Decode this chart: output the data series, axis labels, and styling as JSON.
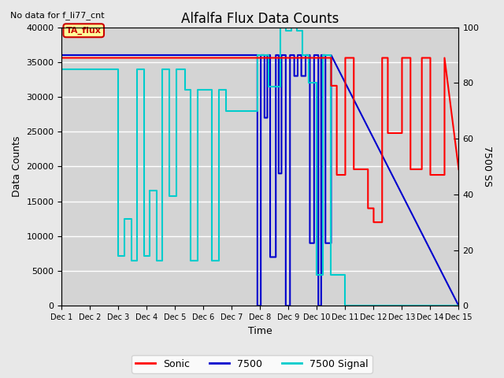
{
  "title": "Alfalfa Flux Data Counts",
  "top_left_text": "No data for f_li77_cnt",
  "xlabel": "Time",
  "ylabel": "Data Counts",
  "ylabel_right": "7500 SS",
  "ylim_left": [
    0,
    40000
  ],
  "ylim_right": [
    0,
    100
  ],
  "background_color": "#e8e8e8",
  "plot_bg_color": "#d4d4d4",
  "legend_entries": [
    "Sonic",
    "7500",
    "7500 Signal"
  ],
  "legend_colors": [
    "#ff0000",
    "#0000cd",
    "#00cccc"
  ],
  "annotation_box": {
    "text": "TA_flux",
    "color": "#cc0000",
    "bg": "#ffff99"
  },
  "xtick_labels": [
    "Dec 1",
    "Dec 2",
    "Dec 3",
    "Dec 4",
    "Dec 5",
    "Dec 6",
    "Dec 7",
    "Dec 8",
    "Dec 9",
    "Dec 10",
    "Dec 11",
    "Dec 12",
    "Dec 13",
    "Dec 14",
    "Dec 15"
  ],
  "xtick_positions": [
    1,
    2,
    3,
    4,
    5,
    6,
    7,
    8,
    9,
    10,
    11,
    12,
    13,
    14,
    15
  ],
  "ytick_left": [
    0,
    5000,
    10000,
    15000,
    20000,
    25000,
    30000,
    35000,
    40000
  ],
  "ytick_right": [
    0,
    20,
    40,
    60,
    80,
    100
  ],
  "sonic_x": [
    1.0,
    10.5,
    10.5,
    10.7,
    10.7,
    11.0,
    11.0,
    11.3,
    11.3,
    11.8,
    11.8,
    12.0,
    12.0,
    12.3,
    12.3,
    12.5,
    12.5,
    13.0,
    13.0,
    13.3,
    13.3,
    13.7,
    13.7,
    14.0,
    14.0,
    14.5,
    14.5,
    15.0
  ],
  "sonic_y": [
    89,
    89,
    79,
    79,
    47,
    47,
    89,
    89,
    49,
    49,
    35,
    35,
    30,
    30,
    89,
    89,
    62,
    62,
    89,
    89,
    49,
    49,
    89,
    89,
    47,
    47,
    89,
    49
  ],
  "s7500_x": [
    1.0,
    7.9,
    7.9,
    8.02,
    8.02,
    8.15,
    8.15,
    8.25,
    8.25,
    8.35,
    8.35,
    8.55,
    8.55,
    8.65,
    8.65,
    8.75,
    8.75,
    8.9,
    8.9,
    9.05,
    9.05,
    9.2,
    9.2,
    9.32,
    9.32,
    9.45,
    9.45,
    9.6,
    9.6,
    9.75,
    9.75,
    9.9,
    9.9,
    10.05,
    10.05,
    10.15,
    10.15,
    10.3,
    10.3,
    10.5,
    10.5,
    15.0
  ],
  "s7500_y": [
    36000,
    36000,
    0,
    0,
    36000,
    36000,
    27000,
    27000,
    36000,
    36000,
    7000,
    7000,
    36000,
    36000,
    19000,
    19000,
    36000,
    36000,
    0,
    0,
    36000,
    36000,
    33000,
    33000,
    36000,
    36000,
    33000,
    33000,
    36000,
    36000,
    9000,
    9000,
    36000,
    36000,
    0,
    0,
    36000,
    36000,
    9000,
    9000,
    36000,
    0
  ],
  "signal_x": [
    1.0,
    3.0,
    3.0,
    3.2,
    3.2,
    3.45,
    3.45,
    3.65,
    3.65,
    3.9,
    3.9,
    4.1,
    4.1,
    4.35,
    4.35,
    4.55,
    4.55,
    4.8,
    4.8,
    5.05,
    5.05,
    5.35,
    5.35,
    5.55,
    5.55,
    5.8,
    5.8,
    6.05,
    6.05,
    6.3,
    6.3,
    6.55,
    6.55,
    6.8,
    6.8,
    7.9,
    7.9,
    8.3,
    8.3,
    8.7,
    8.7,
    8.9,
    8.9,
    9.1,
    9.1,
    9.3,
    9.3,
    9.5,
    9.5,
    9.7,
    9.7,
    10.0,
    10.0,
    10.2,
    10.2,
    10.5,
    10.5,
    11.0,
    11.0,
    14.5,
    14.5,
    15.0
  ],
  "signal_y": [
    34000,
    34000,
    7200,
    7200,
    12500,
    12500,
    6500,
    6500,
    34000,
    34000,
    7200,
    7200,
    16500,
    16500,
    6500,
    6500,
    34000,
    34000,
    15800,
    15800,
    34000,
    34000,
    31000,
    31000,
    6500,
    6500,
    31000,
    31000,
    31000,
    31000,
    6500,
    6500,
    31000,
    31000,
    28000,
    28000,
    36000,
    36000,
    31500,
    31500,
    40000,
    40000,
    39500,
    39500,
    40000,
    40000,
    39500,
    39500,
    36000,
    36000,
    32000,
    32000,
    4500,
    4500,
    36000,
    36000,
    4500,
    4500,
    0,
    0,
    0,
    0
  ]
}
